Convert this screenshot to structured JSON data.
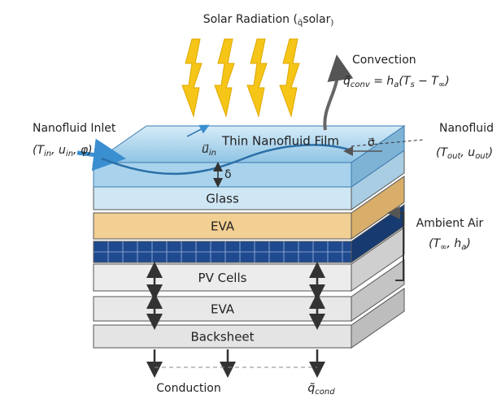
{
  "title": [
    "Solar Radiation (",
    "q̃",
    "solar",
    ")"
  ],
  "convection": {
    "label": "Convection",
    "equation": [
      "q̃",
      "conv",
      " = h",
      "a",
      "(T",
      "s",
      " − T",
      "∞",
      ")"
    ]
  },
  "inlet": {
    "label": "Nanofluid Inlet",
    "variables": [
      "(T",
      "in",
      ", u",
      "in",
      ", φ)"
    ]
  },
  "outlet": {
    "label": "Nanofluid",
    "variables": [
      "(T",
      "out",
      ", u",
      "out",
      ")"
    ]
  },
  "film": {
    "label": "Thin Nanofluid Film",
    "velocity": [
      "u⃗",
      "in"
    ],
    "thickness": "δ",
    "stress": "σ⃗"
  },
  "layers": [
    "Glass",
    "EVA",
    "PV Cells",
    "EVA",
    "Backsheet"
  ],
  "ambient": {
    "label": "Ambient Air",
    "variables": [
      "(T",
      "∞",
      ", h",
      "a",
      ")"
    ]
  },
  "conduction": {
    "label": "Conduction",
    "symbol": [
      "q̃",
      "cond"
    ]
  }
}
